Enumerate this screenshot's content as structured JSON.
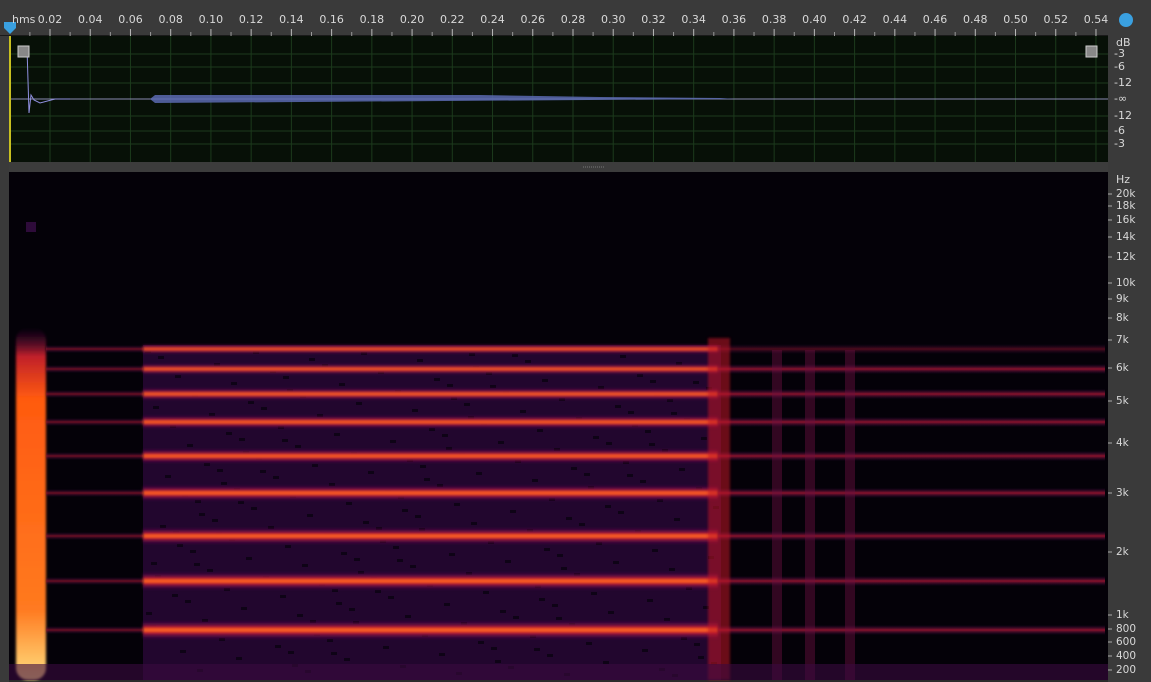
{
  "time_ruler": {
    "unit": "hms",
    "labels": [
      "0.02",
      "0.04",
      "0.06",
      "0.08",
      "0.10",
      "0.12",
      "0.14",
      "0.16",
      "0.18",
      "0.20",
      "0.22",
      "0.24",
      "0.26",
      "0.28",
      "0.30",
      "0.32",
      "0.34",
      "0.36",
      "0.38",
      "0.40",
      "0.42",
      "0.44",
      "0.46",
      "0.48",
      "0.50",
      "0.52",
      "0.54"
    ]
  },
  "waveform_scale": {
    "unit": "dB",
    "labels": [
      "-3",
      "-6",
      "-12",
      "-∞",
      "-12",
      "-6",
      "-3"
    ]
  },
  "spectral_scale": {
    "unit": "Hz",
    "labels": [
      "20k",
      "18k",
      "16k",
      "14k",
      "12k",
      "10k",
      "9k",
      "8k",
      "7k",
      "6k",
      "5k",
      "4k",
      "3k",
      "2k",
      "1k",
      "800",
      "600",
      "400",
      "200"
    ]
  }
}
